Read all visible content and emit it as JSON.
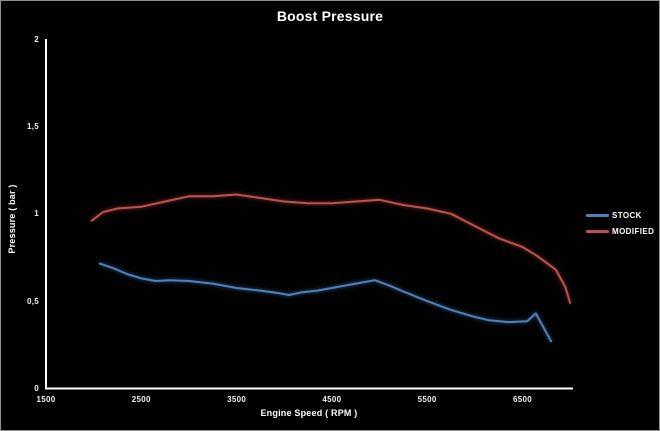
{
  "chart_data": {
    "type": "line",
    "title": "Boost Pressure",
    "xlabel": "Engine Speed ( RPM )",
    "ylabel": "Pressure ( bar )",
    "xlim": [
      1500,
      7025
    ],
    "ylim": [
      0,
      2
    ],
    "x_ticks": [
      1500,
      2500,
      3500,
      4500,
      5500,
      6500
    ],
    "x_tick_labels": [
      "1500",
      "2500",
      "3500",
      "4500",
      "5500",
      "6500"
    ],
    "y_ticks": [
      0,
      0.5,
      1,
      1.5,
      2
    ],
    "y_tick_labels": [
      "0",
      "0,5",
      "1",
      "1,5",
      "2"
    ],
    "decimal_separator": ",",
    "grid": false,
    "legend_position": "right",
    "background_color": "#010101",
    "axis_color": "#ffffff",
    "series": [
      {
        "name": "STOCK",
        "color": "#4F81BD",
        "points": [
          [
            2065,
            0.715
          ],
          [
            2200,
            0.69
          ],
          [
            2350,
            0.655
          ],
          [
            2500,
            0.63
          ],
          [
            2650,
            0.615
          ],
          [
            2800,
            0.62
          ],
          [
            3000,
            0.615
          ],
          [
            3250,
            0.6
          ],
          [
            3500,
            0.575
          ],
          [
            3750,
            0.56
          ],
          [
            3950,
            0.545
          ],
          [
            4050,
            0.535
          ],
          [
            4180,
            0.55
          ],
          [
            4350,
            0.56
          ],
          [
            4550,
            0.58
          ],
          [
            4750,
            0.6
          ],
          [
            4950,
            0.62
          ],
          [
            5100,
            0.59
          ],
          [
            5250,
            0.555
          ],
          [
            5500,
            0.5
          ],
          [
            5750,
            0.45
          ],
          [
            6000,
            0.41
          ],
          [
            6150,
            0.39
          ],
          [
            6350,
            0.38
          ],
          [
            6550,
            0.385
          ],
          [
            6640,
            0.43
          ],
          [
            6720,
            0.35
          ],
          [
            6800,
            0.27
          ]
        ]
      },
      {
        "name": "MODIFIED",
        "color": "#C0504D",
        "points": [
          [
            1980,
            0.96
          ],
          [
            2100,
            1.01
          ],
          [
            2250,
            1.03
          ],
          [
            2500,
            1.04
          ],
          [
            2750,
            1.07
          ],
          [
            3000,
            1.1
          ],
          [
            3250,
            1.1
          ],
          [
            3500,
            1.11
          ],
          [
            3750,
            1.09
          ],
          [
            4000,
            1.07
          ],
          [
            4250,
            1.06
          ],
          [
            4500,
            1.06
          ],
          [
            4750,
            1.07
          ],
          [
            5000,
            1.08
          ],
          [
            5250,
            1.05
          ],
          [
            5500,
            1.03
          ],
          [
            5750,
            1.0
          ],
          [
            6000,
            0.93
          ],
          [
            6250,
            0.86
          ],
          [
            6500,
            0.81
          ],
          [
            6650,
            0.76
          ],
          [
            6750,
            0.72
          ],
          [
            6850,
            0.68
          ],
          [
            6950,
            0.58
          ],
          [
            7000,
            0.49
          ]
        ]
      }
    ]
  }
}
